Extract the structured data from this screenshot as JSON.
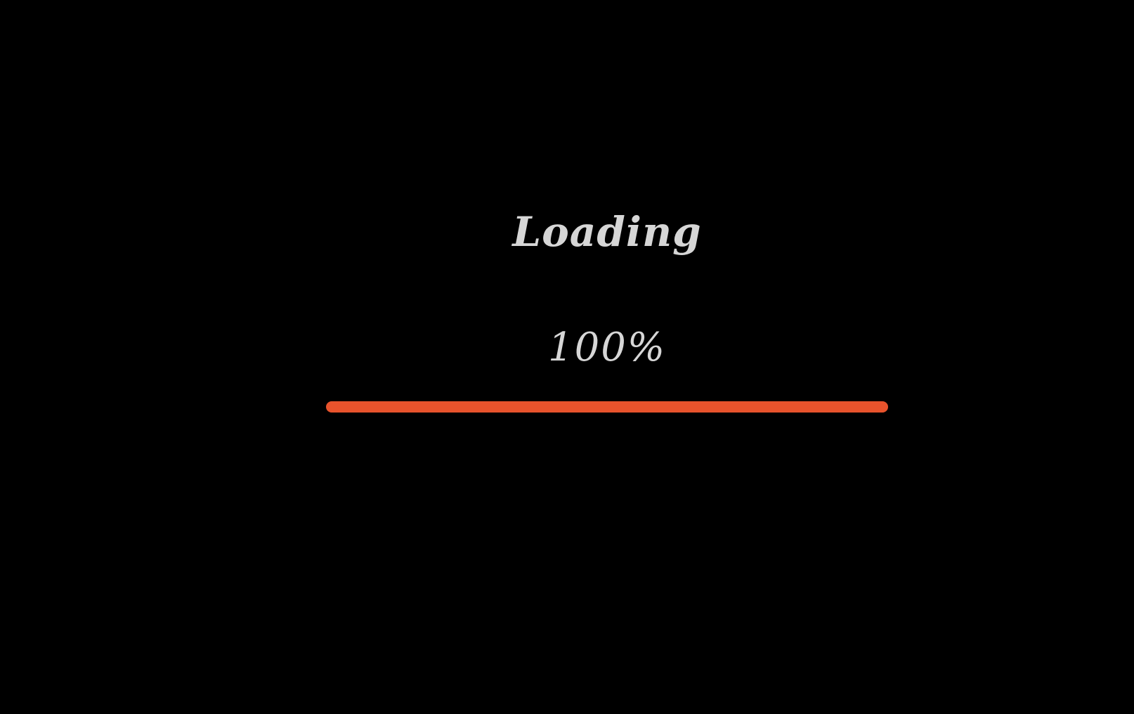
{
  "loader": {
    "title": "Loading",
    "percent_text": "100%",
    "progress": 1.0
  },
  "colors": {
    "background": "#000000",
    "text": "#d6d6d6",
    "progress_fill": "#e8532c"
  }
}
